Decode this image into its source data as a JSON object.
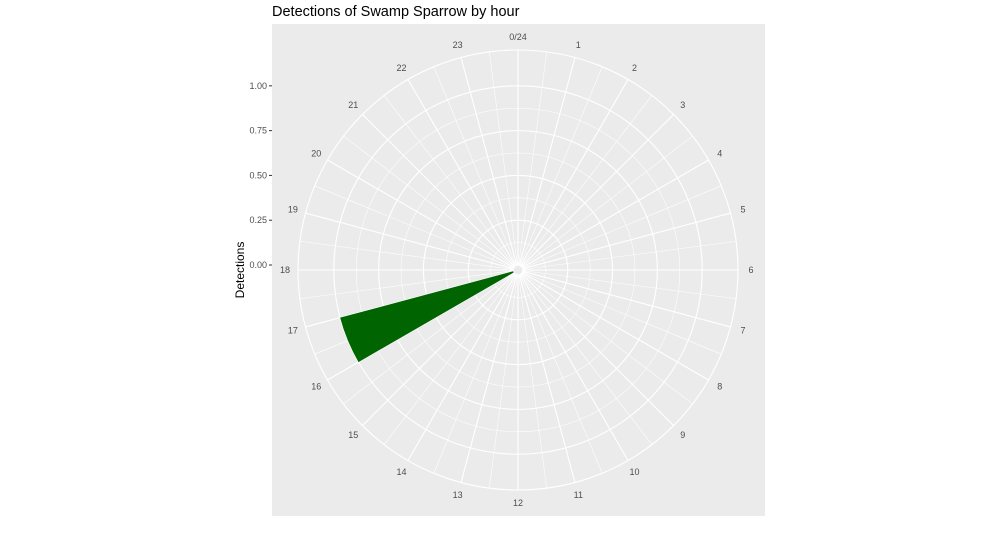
{
  "chart_data": {
    "type": "bar",
    "coord": "polar",
    "title": "Detections of Swamp Sparrow by hour",
    "xlabel": "",
    "ylabel": "Detections",
    "ylim": [
      0,
      1.2
    ],
    "y_ticks": [
      {
        "value": 0,
        "label": "0.00"
      },
      {
        "value": 0.25,
        "label": "0.25"
      },
      {
        "value": 0.5,
        "label": "0.50"
      },
      {
        "value": 0.75,
        "label": "0.75"
      },
      {
        "value": 1.0,
        "label": "1.00"
      }
    ],
    "hour_labels": [
      "0/24",
      "1",
      "2",
      "3",
      "4",
      "5",
      "6",
      "7",
      "8",
      "9",
      "10",
      "11",
      "12",
      "13",
      "14",
      "15",
      "16",
      "17",
      "18",
      "19",
      "20",
      "21",
      "22",
      "23"
    ],
    "categories": [
      16.5
    ],
    "values": [
      1
    ],
    "bar_width_hours": 1,
    "bar_color": "#006400",
    "panel_background": "#ebebeb",
    "grid": true,
    "grid_color": "#ffffff"
  }
}
